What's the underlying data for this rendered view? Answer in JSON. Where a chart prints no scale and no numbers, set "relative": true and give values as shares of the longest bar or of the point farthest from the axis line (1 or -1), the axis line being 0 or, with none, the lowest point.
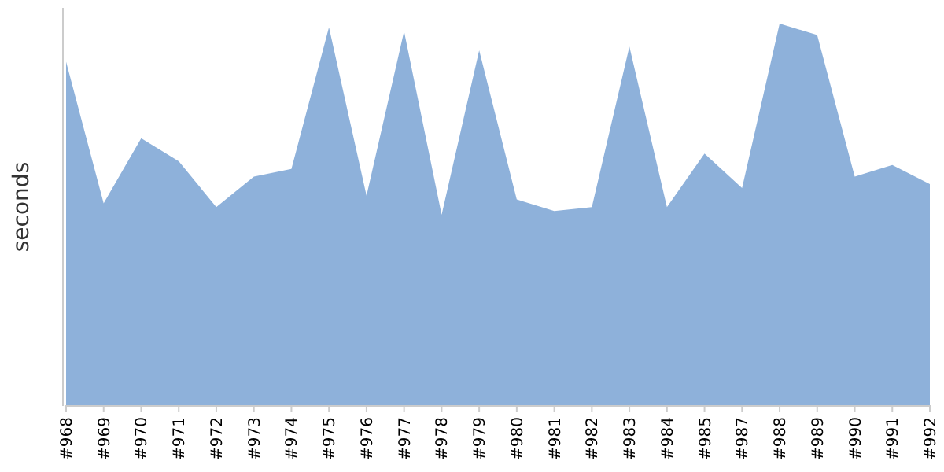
{
  "chart_data": {
    "type": "area",
    "ylabel": "seconds",
    "relative": true,
    "categories": [
      "#968",
      "#969",
      "#970",
      "#971",
      "#972",
      "#973",
      "#974",
      "#975",
      "#976",
      "#977",
      "#978",
      "#979",
      "#980",
      "#981",
      "#982",
      "#983",
      "#984",
      "#985",
      "#987",
      "#988",
      "#989",
      "#990",
      "#991",
      "#992"
    ],
    "series": [
      {
        "color": "#8eb1da",
        "values": [
          0.9,
          0.53,
          0.7,
          0.64,
          0.52,
          0.6,
          0.62,
          0.99,
          0.55,
          0.98,
          0.5,
          0.93,
          0.54,
          0.51,
          0.52,
          0.94,
          0.52,
          0.66,
          0.57,
          1,
          0.97,
          0.6,
          0.63,
          0.58
        ]
      }
    ]
  }
}
